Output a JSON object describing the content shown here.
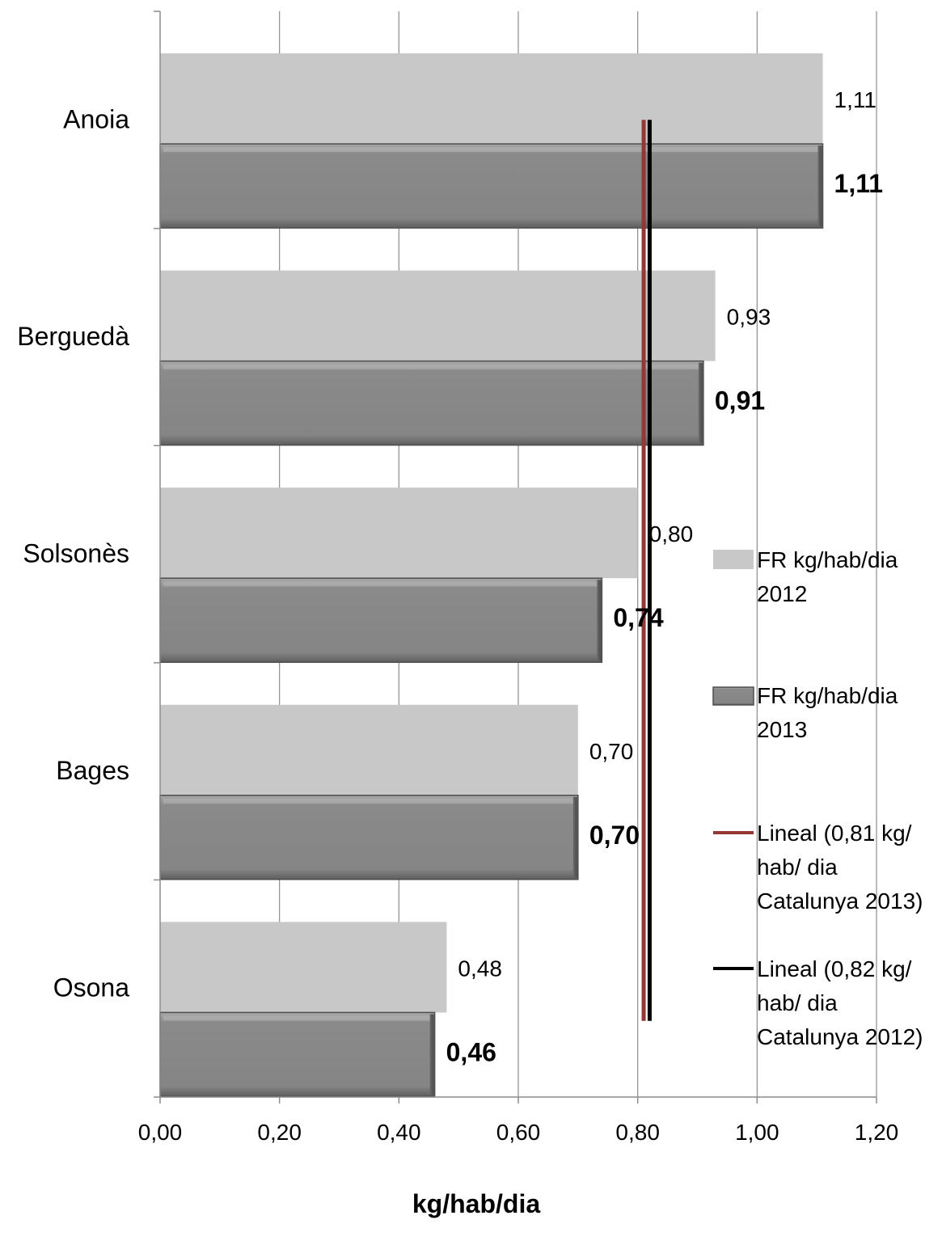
{
  "chart_data": {
    "type": "bar",
    "orientation": "horizontal",
    "categories": [
      "Anoia",
      "Berguedà",
      "Solsonès",
      "Bages",
      "Osona"
    ],
    "series": [
      {
        "name": "FR kg/hab/dia 2012",
        "values": [
          1.11,
          0.93,
          0.8,
          0.7,
          0.48
        ],
        "labels": [
          "1,11",
          "0,93",
          "0,80",
          "0,70",
          "0,48"
        ],
        "color": "#c8c8c8"
      },
      {
        "name": "FR kg/hab/dia 2013",
        "values": [
          1.11,
          0.91,
          0.74,
          0.7,
          0.46
        ],
        "labels": [
          "1,11",
          "0,91",
          "0,74",
          "0,70",
          "0,46"
        ],
        "color": "#858585"
      }
    ],
    "reference_lines": [
      {
        "name": "Lineal (0,81 kg/ hab/ dia Catalunya 2013)",
        "value": 0.81,
        "color": "#953735"
      },
      {
        "name": "Lineal (0,82 kg/ hab/ dia Catalunya 2012)",
        "value": 0.82,
        "color": "#000000"
      }
    ],
    "xlim": [
      0,
      1.2
    ],
    "x_ticks": [
      0,
      0.2,
      0.4,
      0.6,
      0.8,
      1.0,
      1.2
    ],
    "x_tick_labels": [
      "0,00",
      "0,20",
      "0,40",
      "0,60",
      "0,80",
      "1,00",
      "1,20"
    ],
    "xlabel": "kg/hab/dia",
    "ylabel": "",
    "title": "",
    "grid": true,
    "legend": {
      "position": "right",
      "items": [
        {
          "lines": [
            "FR kg/hab/dia",
            "2012"
          ],
          "swatch": "bar-2012"
        },
        {
          "lines": [
            "FR kg/hab/dia",
            "2013"
          ],
          "swatch": "bar-2013"
        },
        {
          "lines": [
            "Lineal (0,81 kg/",
            "hab/ dia",
            "Catalunya 2013)"
          ],
          "swatch": "line-2013"
        },
        {
          "lines": [
            "Lineal (0,82 kg/",
            "hab/ dia",
            "Catalunya 2012)"
          ],
          "swatch": "line-2012"
        }
      ]
    }
  }
}
